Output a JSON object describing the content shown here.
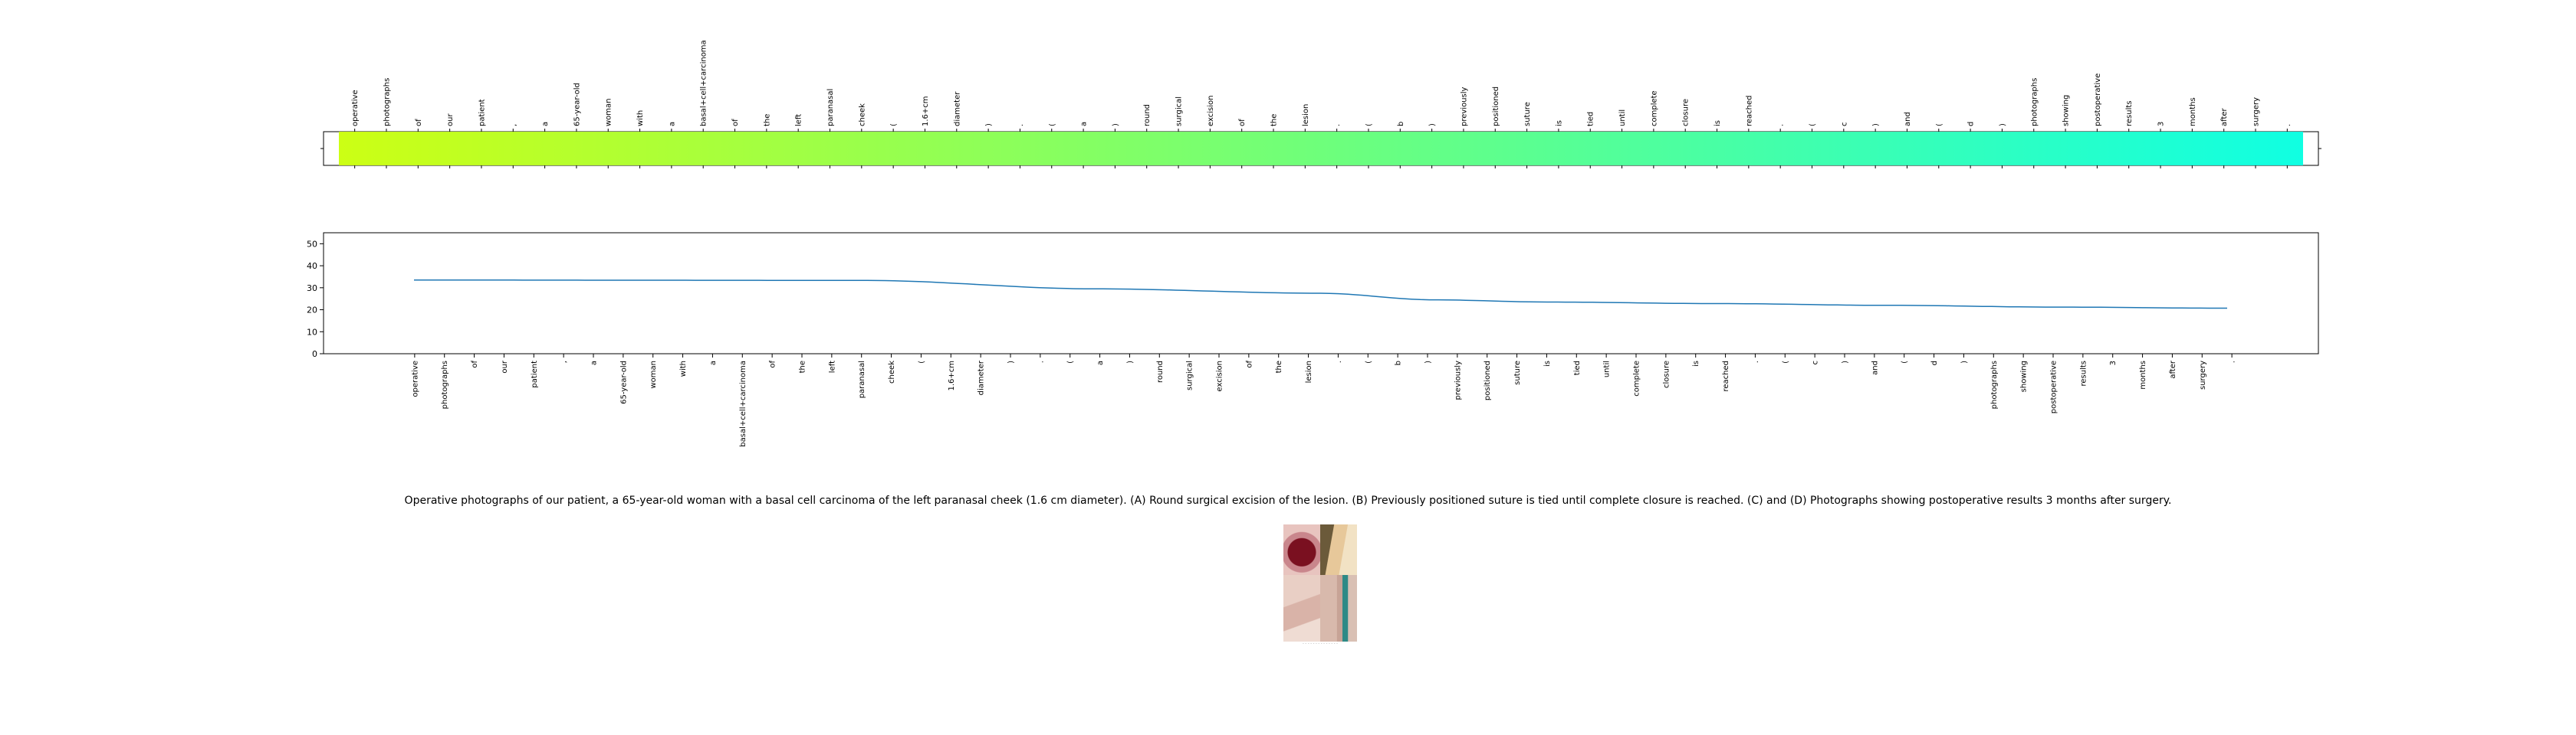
{
  "tokens": [
    "operative",
    "photographs",
    "of",
    "our",
    "patient",
    ",",
    "a",
    "65-year-old",
    "woman",
    "with",
    "a",
    "basal+cell+carcinoma",
    "of",
    "the",
    "left",
    "paranasal",
    "cheek",
    "(",
    "1.6+cm",
    "diameter",
    ")",
    ".",
    "(",
    "a",
    ")",
    "round",
    "surgical",
    "excision",
    "of",
    "the",
    "lesion",
    ".",
    "(",
    "b",
    ")",
    "previously",
    "positioned",
    "suture",
    "is",
    "tied",
    "until",
    "complete",
    "closure",
    "is",
    "reached",
    ".",
    "(",
    "c",
    ")",
    "and",
    "(",
    "d",
    ")",
    "photographs",
    "showing",
    "postoperative",
    "results",
    "3",
    "months",
    "after",
    "surgery",
    "."
  ],
  "caption": "Operative photographs of our patient, a 65-year-old woman with a basal cell carcinoma of the left paranasal cheek (1.6 cm diameter). (A) Round surgical excision of the lesion. (B) Previously positioned suture is tied until complete closure is reached. (C) and (D) Photographs showing postoperative results 3 months after surgery.",
  "chart_data": [
    {
      "type": "heatmap",
      "colormap": [
        "#ccff14",
        "#10ffe2"
      ],
      "colormap_note": "single row, token colors vary smoothly from yellow-green (first token) to cyan (last token)"
    },
    {
      "type": "line",
      "ylim": [
        0,
        55
      ],
      "yticks": [
        0,
        10,
        20,
        30,
        40,
        50
      ],
      "color": "#1f77b4",
      "y_points": [
        [
          0,
          33.5
        ],
        [
          0.25,
          33.4
        ],
        [
          0.4,
          33.3
        ],
        [
          0.6,
          29.5
        ],
        [
          0.8,
          27.5
        ],
        [
          0.9,
          24.5
        ],
        [
          1.0,
          23.5
        ],
        [
          1.15,
          22.8
        ],
        [
          1.3,
          22
        ],
        [
          1.45,
          21.2
        ],
        [
          1.6,
          20.7
        ]
      ]
    }
  ],
  "thumbnail": {
    "panels": [
      "A",
      "B",
      "C",
      "D"
    ],
    "label": "- - - -  - - - - -  - - - - -"
  }
}
